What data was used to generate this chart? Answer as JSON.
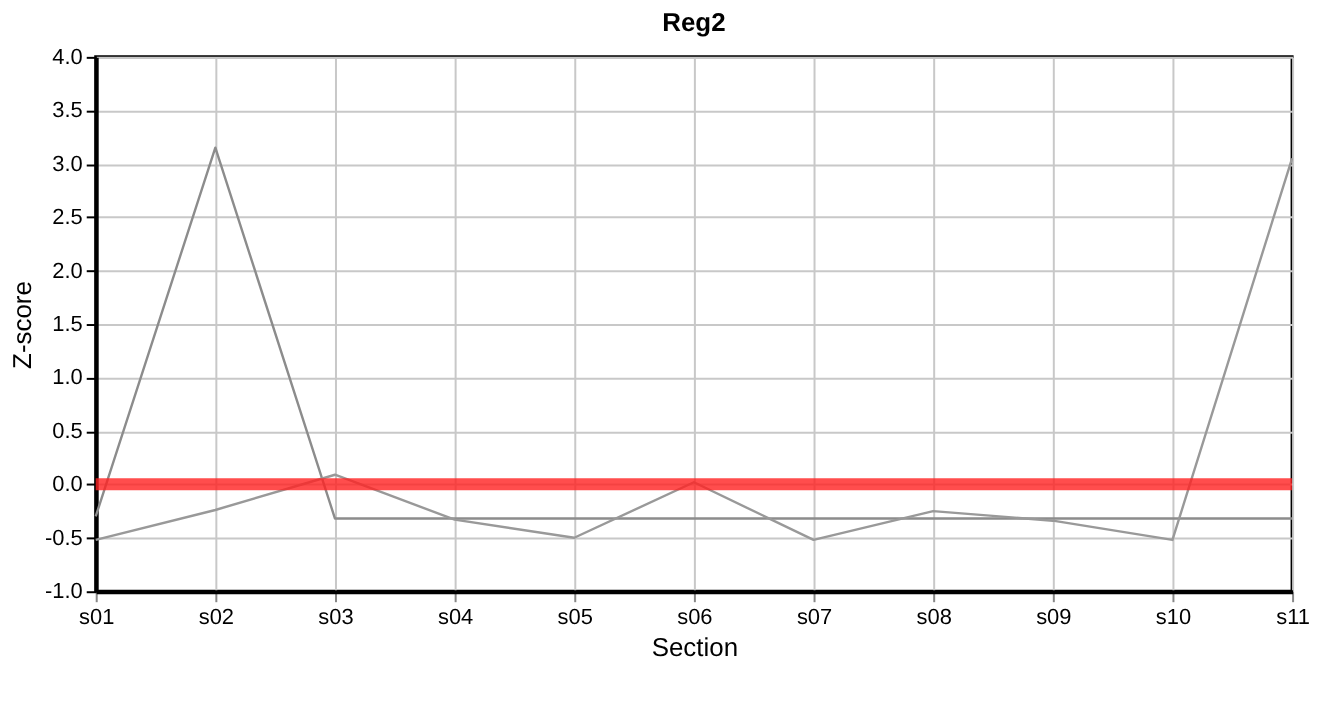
{
  "chart_data": {
    "type": "line",
    "title": "Reg2",
    "xlabel": "Section",
    "ylabel": "Z-score",
    "categories": [
      "s01",
      "s02",
      "s03",
      "s04",
      "s05",
      "s06",
      "s07",
      "s08",
      "s09",
      "s10",
      "s11"
    ],
    "series": [
      {
        "color": "#8c8c8c",
        "values": [
          -0.3,
          3.15,
          -0.32,
          -0.32,
          -0.32,
          -0.32,
          -0.32,
          -0.32,
          -0.32,
          -0.32,
          -0.32
        ]
      },
      {
        "color": "#999999",
        "values": [
          -0.52,
          -0.24,
          0.09,
          -0.33,
          -0.5,
          0.02,
          -0.52,
          -0.25,
          -0.34,
          -0.52,
          3.05
        ]
      }
    ],
    "ref_lines": [
      {
        "axis": "y",
        "value": 0,
        "color": "#ff2020"
      }
    ],
    "ylim": [
      -1.0,
      4.0
    ],
    "yticks": [
      {
        "value": -1,
        "label": "-1.0"
      },
      {
        "value": -0.5,
        "label": "-0.5"
      },
      {
        "value": 0,
        "label": "0.0"
      },
      {
        "value": 0.5,
        "label": "0.5"
      },
      {
        "value": 1,
        "label": "1.0"
      },
      {
        "value": 1.5,
        "label": "1.5"
      },
      {
        "value": 2,
        "label": "2.0"
      },
      {
        "value": 2.5,
        "label": "2.5"
      },
      {
        "value": 3,
        "label": "3.0"
      },
      {
        "value": 3.5,
        "label": "3.5"
      },
      {
        "value": 4,
        "label": "4.0"
      }
    ],
    "grid": true,
    "marker": "none",
    "line_style": "solid"
  }
}
